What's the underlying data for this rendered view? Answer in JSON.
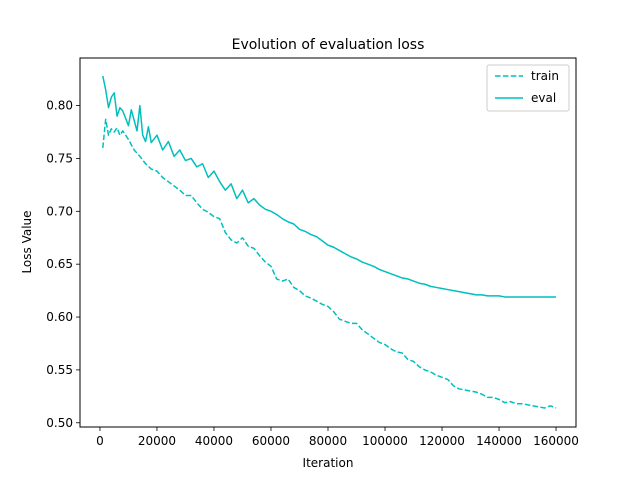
{
  "chart_data": {
    "type": "line",
    "title": "Evolution of evaluation loss",
    "xlabel": "Iteration",
    "ylabel": "Loss Value",
    "xlim": [
      -7000,
      167000
    ],
    "ylim": [
      0.496,
      0.845
    ],
    "xticks": [
      0,
      20000,
      40000,
      60000,
      80000,
      100000,
      120000,
      140000,
      160000
    ],
    "yticks": [
      0.5,
      0.55,
      0.6,
      0.65,
      0.7,
      0.75,
      0.8
    ],
    "xtick_labels": [
      "0",
      "20000",
      "40000",
      "60000",
      "80000",
      "100000",
      "120000",
      "140000",
      "160000"
    ],
    "ytick_labels": [
      "0.50",
      "0.55",
      "0.60",
      "0.65",
      "0.70",
      "0.75",
      "0.80"
    ],
    "grid": false,
    "legend_position": "top-right",
    "series": [
      {
        "name": "train",
        "style": "dashed",
        "color": "#00bfbf",
        "x": [
          1000,
          2000,
          3000,
          4000,
          5000,
          6000,
          7000,
          8000,
          10000,
          12000,
          14000,
          16000,
          18000,
          20000,
          22000,
          24000,
          26000,
          28000,
          30000,
          32000,
          34000,
          36000,
          38000,
          40000,
          42000,
          44000,
          46000,
          48000,
          50000,
          52000,
          54000,
          56000,
          58000,
          60000,
          62000,
          64000,
          66000,
          68000,
          70000,
          72000,
          74000,
          76000,
          78000,
          80000,
          82000,
          84000,
          86000,
          88000,
          90000,
          92000,
          94000,
          96000,
          98000,
          100000,
          102000,
          104000,
          106000,
          108000,
          110000,
          112000,
          114000,
          116000,
          118000,
          120000,
          122000,
          124000,
          126000,
          128000,
          130000,
          132000,
          134000,
          136000,
          138000,
          140000,
          142000,
          144000,
          146000,
          148000,
          150000,
          152000,
          154000,
          156000,
          158000,
          160000
        ],
        "y": [
          0.76,
          0.787,
          0.772,
          0.778,
          0.775,
          0.779,
          0.772,
          0.776,
          0.768,
          0.758,
          0.752,
          0.745,
          0.74,
          0.738,
          0.732,
          0.728,
          0.724,
          0.72,
          0.715,
          0.715,
          0.708,
          0.702,
          0.699,
          0.695,
          0.693,
          0.68,
          0.673,
          0.67,
          0.675,
          0.667,
          0.665,
          0.658,
          0.652,
          0.648,
          0.636,
          0.634,
          0.636,
          0.628,
          0.625,
          0.62,
          0.618,
          0.615,
          0.612,
          0.61,
          0.605,
          0.598,
          0.596,
          0.594,
          0.594,
          0.588,
          0.584,
          0.58,
          0.576,
          0.574,
          0.57,
          0.567,
          0.566,
          0.56,
          0.558,
          0.553,
          0.55,
          0.548,
          0.545,
          0.543,
          0.541,
          0.535,
          0.532,
          0.531,
          0.53,
          0.529,
          0.527,
          0.524,
          0.524,
          0.522,
          0.519,
          0.52,
          0.518,
          0.518,
          0.517,
          0.516,
          0.515,
          0.514,
          0.516,
          0.514
        ]
      },
      {
        "name": "eval",
        "style": "solid",
        "color": "#00bfbf",
        "x": [
          1000,
          2000,
          3000,
          4000,
          5000,
          6000,
          7000,
          8000,
          10000,
          11000,
          12000,
          13000,
          14000,
          15000,
          16000,
          17000,
          18000,
          20000,
          22000,
          24000,
          26000,
          28000,
          30000,
          32000,
          34000,
          36000,
          38000,
          40000,
          42000,
          44000,
          46000,
          48000,
          50000,
          52000,
          54000,
          56000,
          58000,
          60000,
          62000,
          64000,
          66000,
          68000,
          70000,
          72000,
          74000,
          76000,
          78000,
          80000,
          82000,
          84000,
          86000,
          88000,
          90000,
          92000,
          94000,
          96000,
          98000,
          100000,
          102000,
          104000,
          106000,
          108000,
          110000,
          112000,
          114000,
          116000,
          118000,
          120000,
          122000,
          124000,
          126000,
          128000,
          130000,
          132000,
          134000,
          136000,
          138000,
          140000,
          142000,
          144000,
          146000,
          148000,
          150000,
          152000,
          154000,
          156000,
          158000,
          160000
        ],
        "y": [
          0.828,
          0.815,
          0.798,
          0.808,
          0.812,
          0.79,
          0.798,
          0.795,
          0.781,
          0.796,
          0.786,
          0.776,
          0.8,
          0.772,
          0.766,
          0.78,
          0.765,
          0.772,
          0.758,
          0.766,
          0.752,
          0.758,
          0.748,
          0.75,
          0.742,
          0.745,
          0.732,
          0.738,
          0.728,
          0.72,
          0.726,
          0.712,
          0.72,
          0.708,
          0.712,
          0.706,
          0.702,
          0.7,
          0.697,
          0.693,
          0.69,
          0.688,
          0.683,
          0.681,
          0.678,
          0.676,
          0.672,
          0.668,
          0.666,
          0.663,
          0.66,
          0.657,
          0.655,
          0.652,
          0.65,
          0.648,
          0.645,
          0.643,
          0.641,
          0.639,
          0.637,
          0.636,
          0.634,
          0.632,
          0.631,
          0.629,
          0.628,
          0.627,
          0.626,
          0.625,
          0.624,
          0.623,
          0.622,
          0.621,
          0.621,
          0.62,
          0.62,
          0.62,
          0.619,
          0.619,
          0.619,
          0.619,
          0.619,
          0.619,
          0.619,
          0.619,
          0.619,
          0.619
        ]
      }
    ]
  }
}
